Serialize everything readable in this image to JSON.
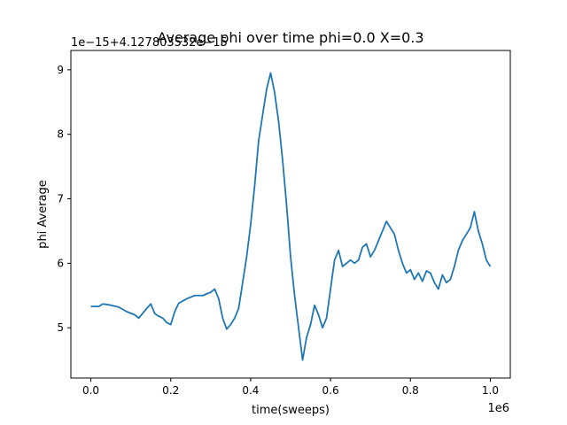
{
  "chart_data": {
    "type": "line",
    "title": "Average phi over time phi=0.0 X=0.3",
    "xlabel": "time(sweeps)",
    "ylabel": "phi Average",
    "x_offset_label": "1e6",
    "y_offset_label": "1e−15+4.127803532e−15",
    "xlim": [
      -0.05,
      1.05
    ],
    "ylim": [
      4.22,
      9.3
    ],
    "x_ticks": [
      0.0,
      0.2,
      0.4,
      0.6,
      0.8,
      1.0
    ],
    "x_tick_labels": [
      "0.0",
      "0.2",
      "0.4",
      "0.6",
      "0.8",
      "1.0"
    ],
    "y_ticks": [
      5,
      6,
      7,
      8,
      9
    ],
    "y_tick_labels": [
      "5",
      "6",
      "7",
      "8",
      "9"
    ],
    "grid": false,
    "series": [
      {
        "color": "#1f77b4",
        "x": [
          0.0,
          0.02,
          0.03,
          0.05,
          0.07,
          0.09,
          0.11,
          0.12,
          0.14,
          0.15,
          0.16,
          0.17,
          0.18,
          0.19,
          0.2,
          0.21,
          0.22,
          0.24,
          0.26,
          0.28,
          0.3,
          0.31,
          0.32,
          0.33,
          0.34,
          0.35,
          0.36,
          0.37,
          0.38,
          0.39,
          0.4,
          0.41,
          0.42,
          0.43,
          0.44,
          0.45,
          0.46,
          0.47,
          0.48,
          0.49,
          0.5,
          0.51,
          0.52,
          0.53,
          0.54,
          0.55,
          0.56,
          0.57,
          0.58,
          0.59,
          0.6,
          0.61,
          0.62,
          0.63,
          0.64,
          0.65,
          0.66,
          0.67,
          0.68,
          0.69,
          0.7,
          0.71,
          0.72,
          0.73,
          0.74,
          0.75,
          0.76,
          0.77,
          0.78,
          0.79,
          0.8,
          0.81,
          0.82,
          0.83,
          0.84,
          0.85,
          0.86,
          0.87,
          0.88,
          0.89,
          0.9,
          0.91,
          0.92,
          0.93,
          0.94,
          0.95,
          0.96,
          0.97,
          0.98,
          0.99,
          1.0
        ],
        "y": [
          5.33,
          5.33,
          5.37,
          5.35,
          5.32,
          5.25,
          5.2,
          5.15,
          5.3,
          5.37,
          5.22,
          5.18,
          5.15,
          5.08,
          5.05,
          5.25,
          5.38,
          5.45,
          5.5,
          5.5,
          5.55,
          5.6,
          5.45,
          5.15,
          4.98,
          5.05,
          5.15,
          5.3,
          5.7,
          6.1,
          6.6,
          7.2,
          7.9,
          8.3,
          8.7,
          8.95,
          8.65,
          8.2,
          7.6,
          6.9,
          6.1,
          5.5,
          5.0,
          4.5,
          4.85,
          5.05,
          5.35,
          5.2,
          5.0,
          5.15,
          5.6,
          6.05,
          6.2,
          5.95,
          6.0,
          6.05,
          6.0,
          6.05,
          6.25,
          6.3,
          6.1,
          6.2,
          6.35,
          6.5,
          6.65,
          6.55,
          6.45,
          6.2,
          6.0,
          5.85,
          5.9,
          5.75,
          5.85,
          5.72,
          5.88,
          5.85,
          5.7,
          5.6,
          5.82,
          5.7,
          5.75,
          5.95,
          6.2,
          6.35,
          6.45,
          6.55,
          6.8,
          6.5,
          6.3,
          6.05,
          5.95
        ]
      }
    ]
  }
}
